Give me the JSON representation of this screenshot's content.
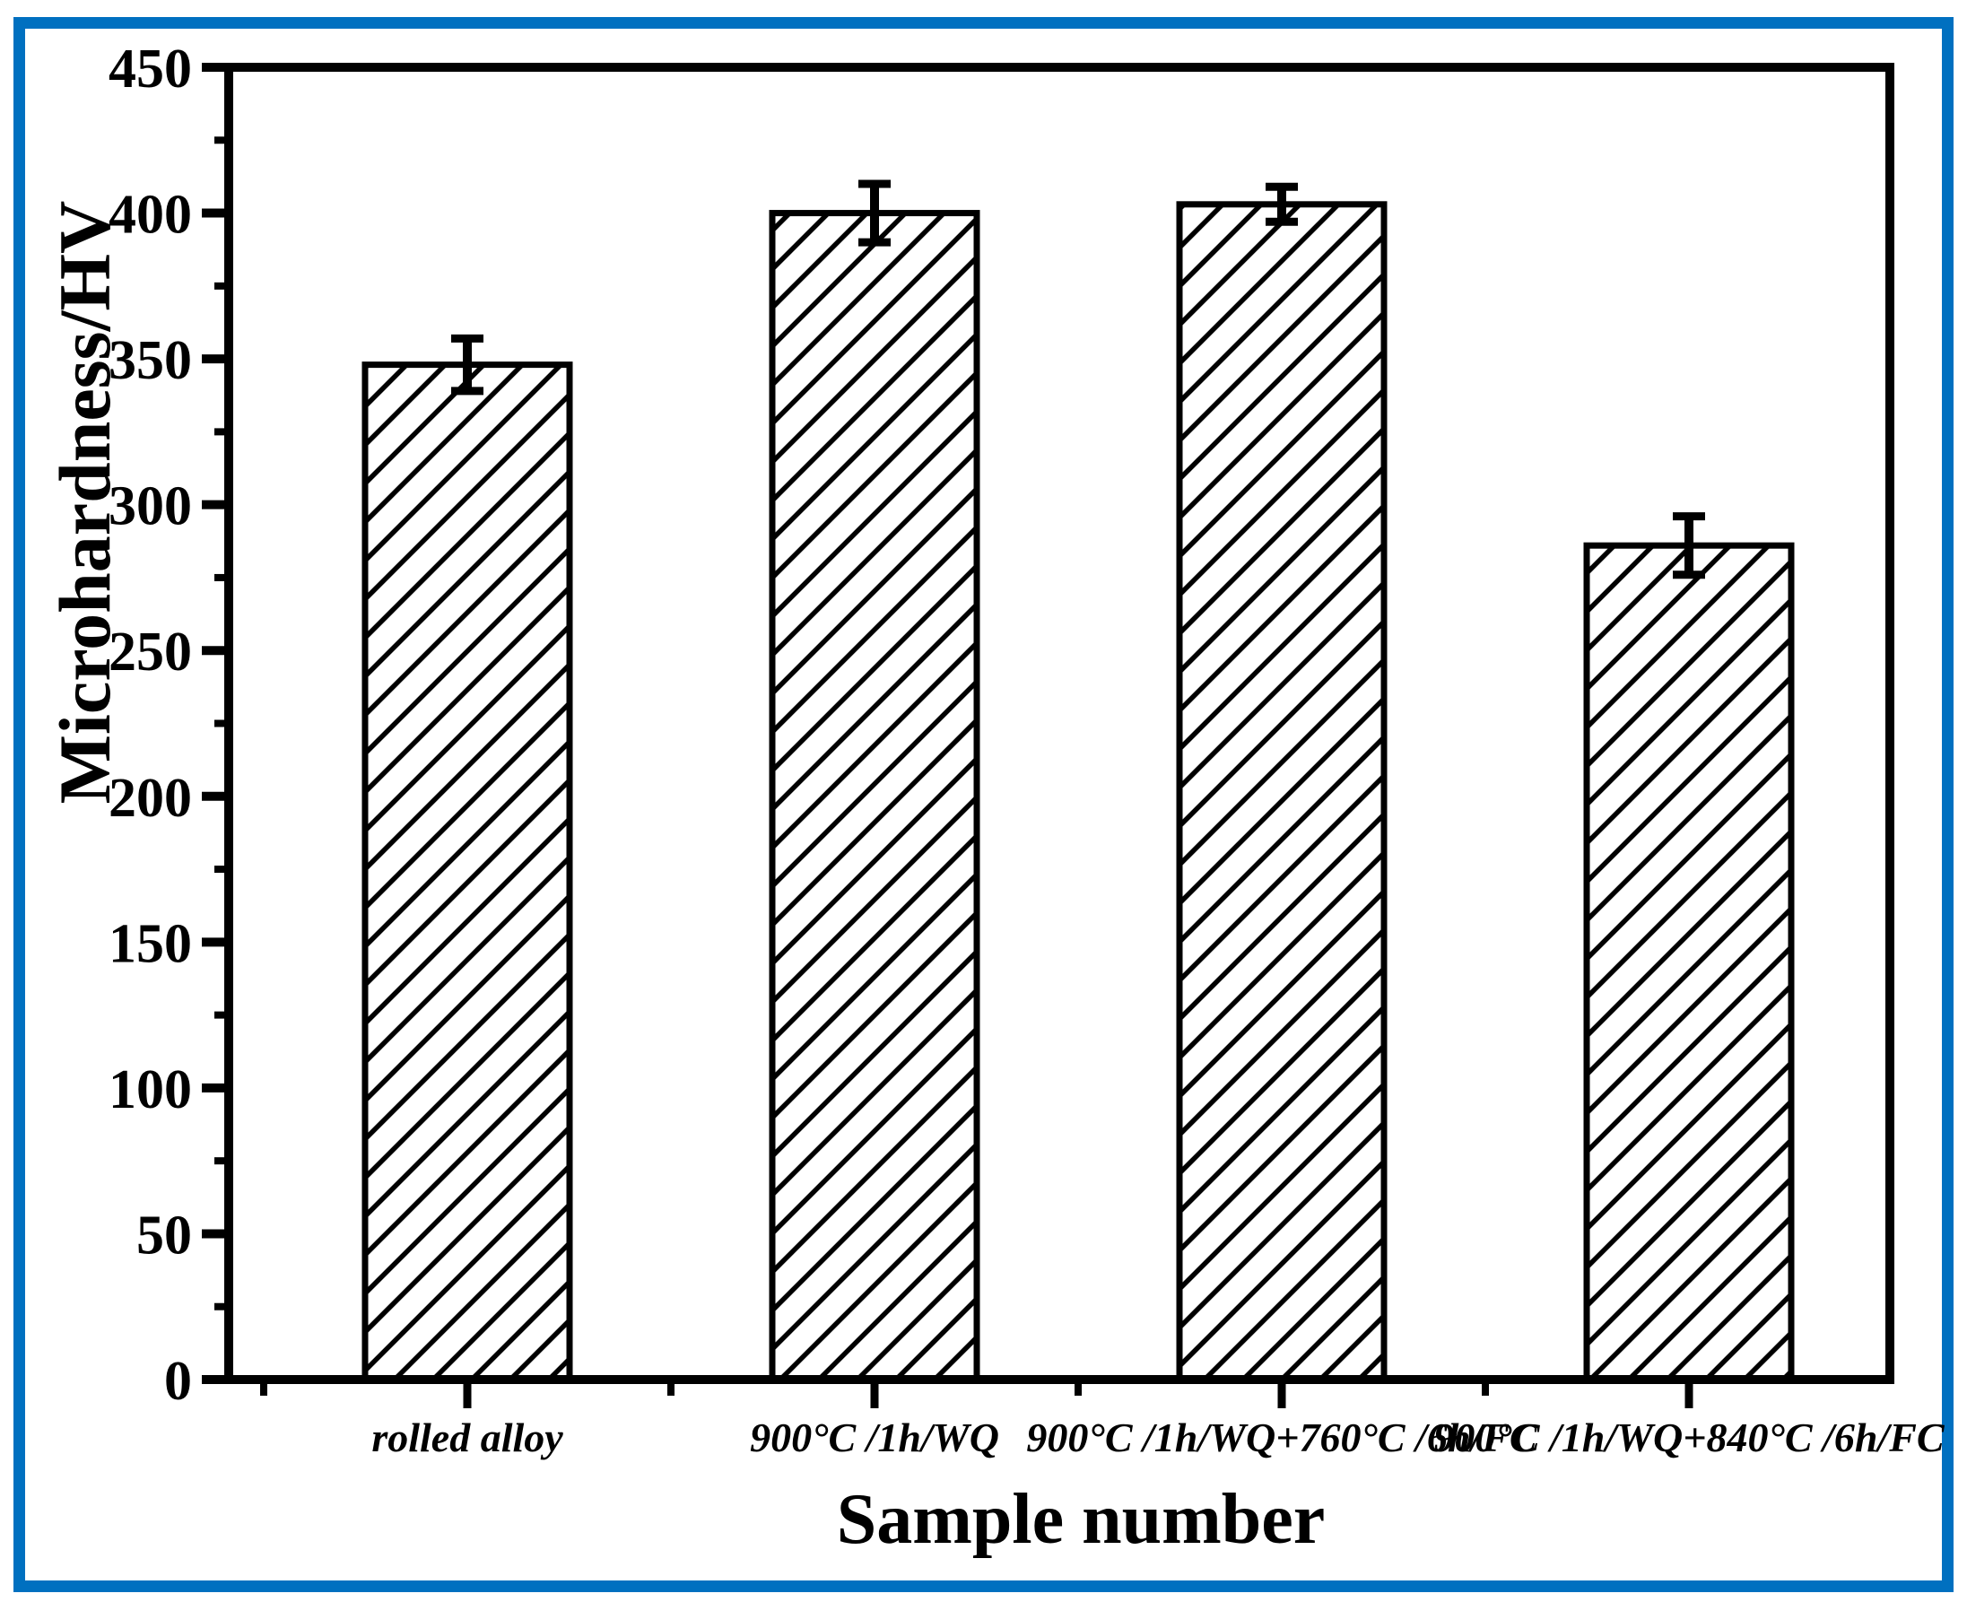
{
  "chart_data": {
    "type": "bar",
    "title": "",
    "xlabel": "Sample number",
    "ylabel": "Microhardness/HV",
    "categories": [
      "rolled alloy",
      "900°C /1h/WQ",
      "900°C /1h/WQ+760°C /6h/FC",
      "900°C /1h/WQ+840°C /6h/FC"
    ],
    "values": [
      348,
      400,
      403,
      286
    ],
    "errors": [
      9,
      10,
      6,
      10
    ],
    "ylim": [
      0,
      450
    ],
    "y_major_step": 50,
    "y_minor_step": 25,
    "grid": false,
    "legend": "none",
    "bar_style": {
      "fill": "#ffffff",
      "hatch": "diagonal-forward",
      "edge_color": "#000000"
    },
    "axis_color": "#000000",
    "background": "#ffffff",
    "border_color": "#0070C0"
  }
}
